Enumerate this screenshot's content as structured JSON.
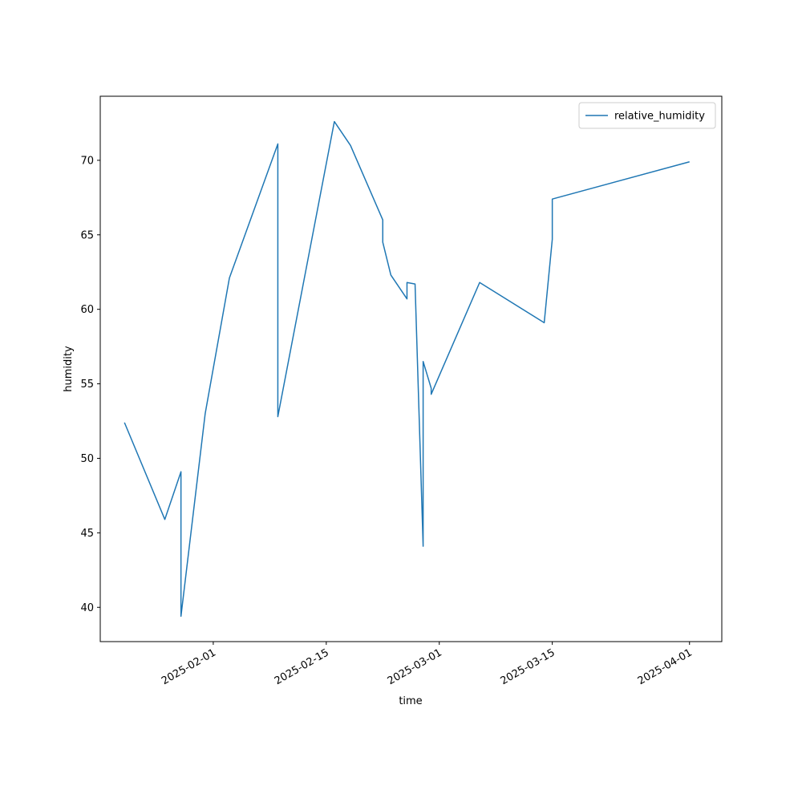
{
  "chart_data": {
    "type": "line",
    "x_label": "time",
    "y_label": "humidity",
    "x": [
      "2025-01-21",
      "2025-01-26",
      "2025-01-28",
      "2025-01-28",
      "2025-01-31",
      "2025-02-03",
      "2025-02-09",
      "2025-02-09",
      "2025-02-16",
      "2025-02-17",
      "2025-02-18",
      "2025-02-22",
      "2025-02-22",
      "2025-02-23",
      "2025-02-25",
      "2025-02-25",
      "2025-02-26",
      "2025-02-27",
      "2025-02-27",
      "2025-02-28",
      "2025-02-28",
      "2025-03-06",
      "2025-03-14",
      "2025-03-15",
      "2025-03-15",
      "2025-04-01"
    ],
    "series": [
      {
        "name": "relative_humidity",
        "color": "#1f77b4",
        "values": [
          52.4,
          45.9,
          49.1,
          39.4,
          53.0,
          62.1,
          71.1,
          52.8,
          72.6,
          71.8,
          71.0,
          66.0,
          64.5,
          62.3,
          60.7,
          61.8,
          61.7,
          44.1,
          56.5,
          54.7,
          54.3,
          61.8,
          59.1,
          64.7,
          67.4,
          69.9
        ]
      }
    ],
    "xlim": [
      "2025-01-18",
      "2025-04-05"
    ],
    "xticks": [
      "2025-02-01",
      "2025-02-15",
      "2025-03-01",
      "2025-03-15",
      "2025-04-01"
    ],
    "ylim": [
      37.7,
      74.3
    ],
    "yticks": [
      40,
      45,
      50,
      55,
      60,
      65,
      70
    ],
    "legend": "upper right",
    "grid": false
  }
}
